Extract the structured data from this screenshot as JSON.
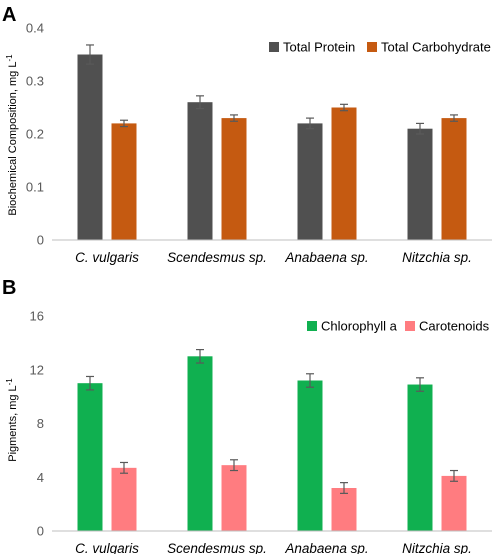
{
  "chart_data": [
    {
      "panel": "A",
      "type": "bar",
      "categories": [
        "C. vulgaris",
        "Scendesmus sp.",
        "Anabaena sp.",
        "Nitzchia sp."
      ],
      "series": [
        {
          "name": "Total Protein",
          "color": "#505050",
          "values": [
            0.35,
            0.26,
            0.22,
            0.21
          ],
          "errors": [
            0.018,
            0.012,
            0.01,
            0.01
          ]
        },
        {
          "name": "Total Carbohydrate",
          "color": "#c55a11",
          "values": [
            0.22,
            0.23,
            0.25,
            0.23
          ],
          "errors": [
            0.006,
            0.006,
            0.006,
            0.006
          ]
        }
      ],
      "ylabel": "Biochemical Composition, mg L",
      "ylabel_sup": "-1",
      "ylim": [
        0,
        0.4
      ],
      "yticks": [
        "0",
        "0.1",
        "0.2",
        "0.3",
        "0.4"
      ],
      "legend": "top-right",
      "grid": false
    },
    {
      "panel": "B",
      "type": "bar",
      "categories": [
        "C. vulgaris",
        "Scendesmus sp.",
        "Anabaena sp.",
        "Nitzchia sp."
      ],
      "series": [
        {
          "name": "Chlorophyll a",
          "color": "#10b050",
          "values": [
            11.0,
            13.0,
            11.2,
            10.9
          ],
          "errors": [
            0.5,
            0.5,
            0.5,
            0.5
          ]
        },
        {
          "name": "Carotenoids",
          "color": "#ff7c80",
          "values": [
            4.7,
            4.9,
            3.2,
            4.1
          ],
          "errors": [
            0.4,
            0.4,
            0.4,
            0.4
          ]
        }
      ],
      "ylabel": "Pigments, mg L",
      "ylabel_sup": "-1",
      "ylim": [
        0,
        16
      ],
      "yticks": [
        "0",
        "4",
        "8",
        "12",
        "16"
      ],
      "legend": "top-right",
      "grid": false
    }
  ]
}
